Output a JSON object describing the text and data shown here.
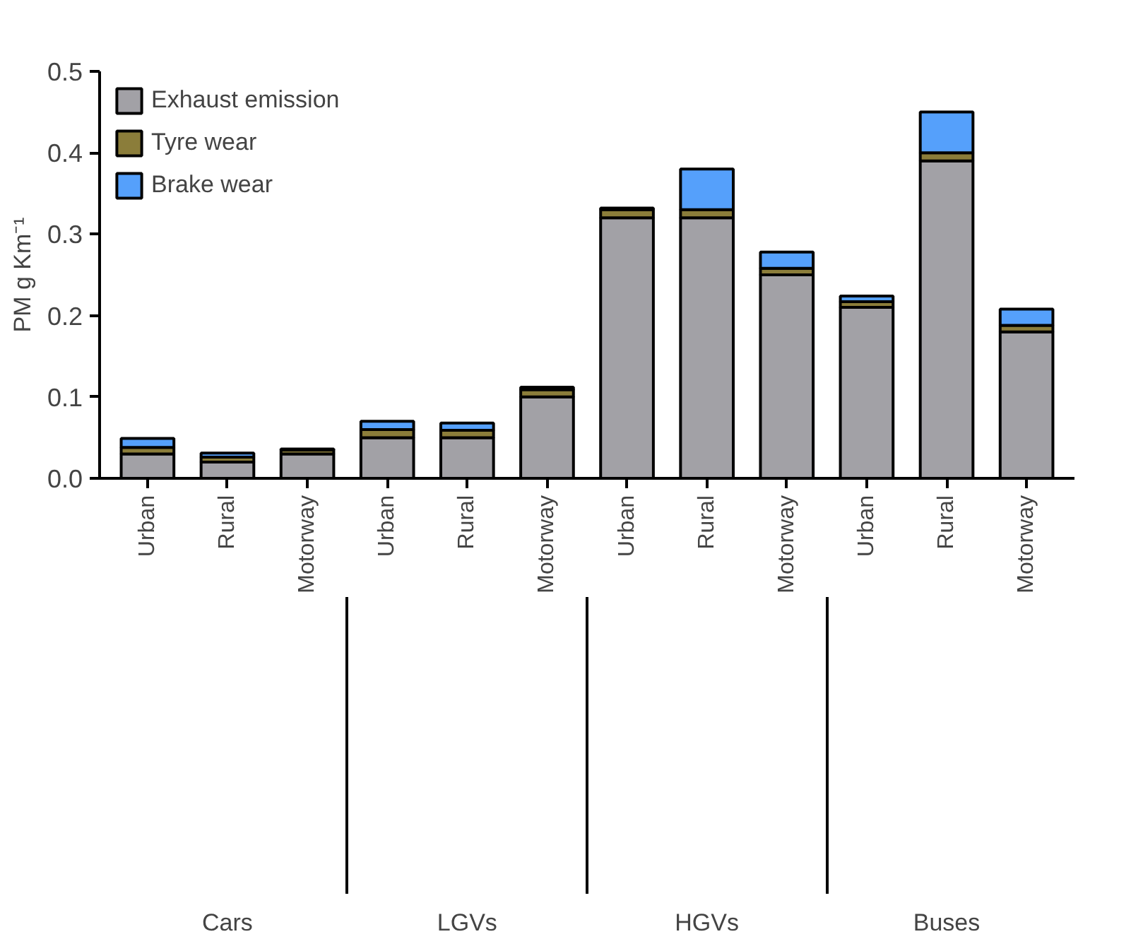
{
  "chart_data": {
    "type": "bar",
    "stacked": true,
    "ylabel": "PM g Km⁻¹",
    "categories": [
      "Urban",
      "Rural",
      "Motorway",
      "Urban",
      "Rural",
      "Motorway",
      "Urban",
      "Rural",
      "Motorway",
      "Urban",
      "Rural",
      "Motorway"
    ],
    "annotations": [
      "Cars",
      "LGVs",
      "HGVs",
      "Buses"
    ],
    "series": [
      {
        "name": "Exhaust emission",
        "color": "#a2a1a6",
        "values": [
          0.03,
          0.02,
          0.03,
          0.05,
          0.05,
          0.1,
          0.32,
          0.32,
          0.25,
          0.21,
          0.39,
          0.18
        ]
      },
      {
        "name": "Tyre wear",
        "color": "#8b7d3a",
        "values": [
          0.008,
          0.006,
          0.005,
          0.01,
          0.009,
          0.009,
          0.01,
          0.01,
          0.008,
          0.007,
          0.01,
          0.008
        ]
      },
      {
        "name": "Brake wear",
        "color": "#55a0fb",
        "values": [
          0.011,
          0.005,
          0.001,
          0.01,
          0.009,
          0.003,
          0.002,
          0.05,
          0.02,
          0.007,
          0.05,
          0.02
        ]
      }
    ],
    "ylim": [
      0,
      0.5
    ],
    "yticks": [
      {
        "value": 0,
        "label": "0.0"
      },
      {
        "value": 0.1,
        "label": "0.1"
      },
      {
        "value": 0.2,
        "label": "0.2"
      },
      {
        "value": 0.3,
        "label": "0.3"
      },
      {
        "value": 0.4,
        "label": "0.4"
      },
      {
        "value": 0.5,
        "label": "0.5"
      }
    ],
    "legend": "top left",
    "grid": false
  }
}
